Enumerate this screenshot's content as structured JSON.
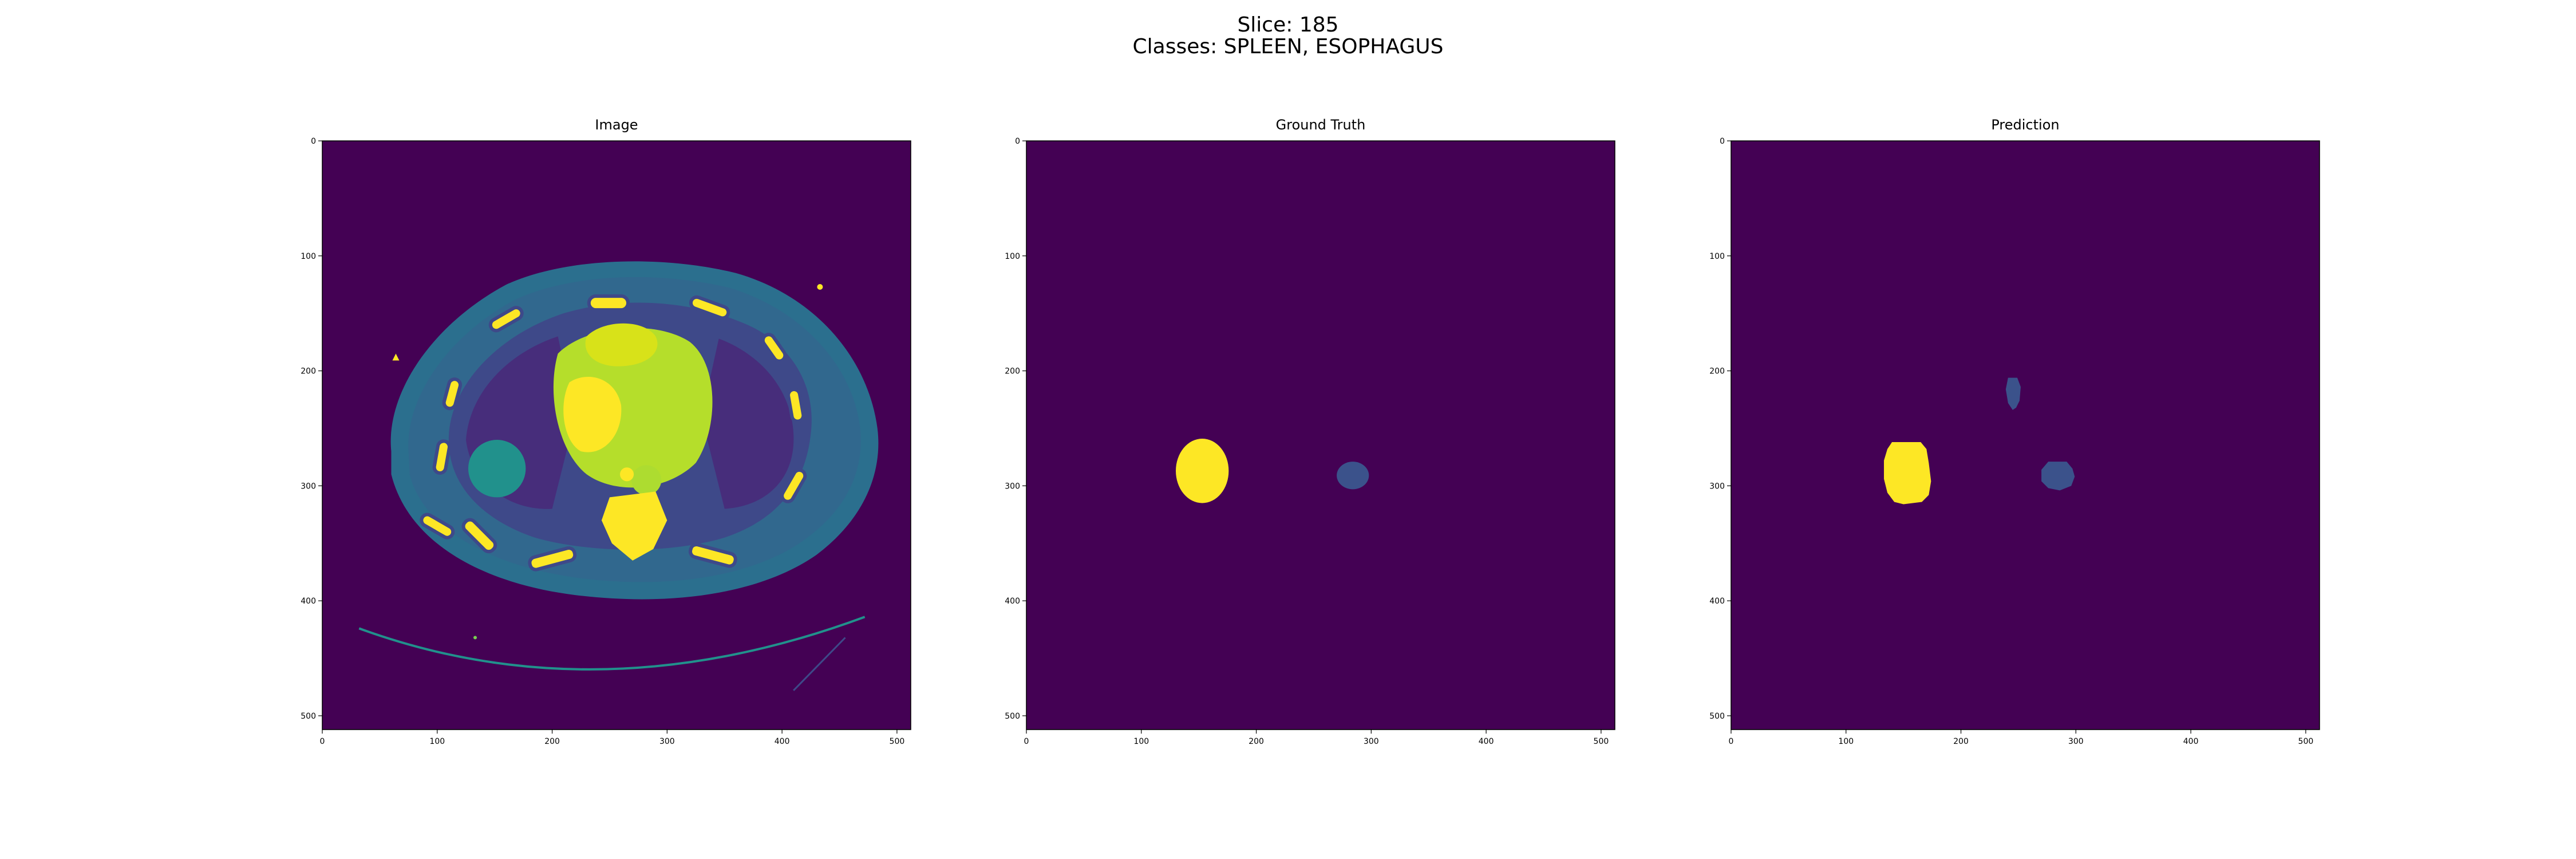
{
  "figure": {
    "title_line1": "Slice: 185",
    "title_line2": "Classes: SPLEEN, ESOPHAGUS"
  },
  "panels": [
    {
      "title": "Image"
    },
    {
      "title": "Ground Truth"
    },
    {
      "title": "Prediction"
    }
  ],
  "axes": {
    "x_ticks": [
      0,
      100,
      200,
      300,
      400,
      500
    ],
    "y_ticks": [
      0,
      100,
      200,
      300,
      400,
      500
    ],
    "extent": 512
  },
  "colors": {
    "background": "#440154",
    "spleen": "#fde725",
    "esophagus": "#3b528b",
    "soft_tissue": "#21918c",
    "bone": "#fde725"
  }
}
